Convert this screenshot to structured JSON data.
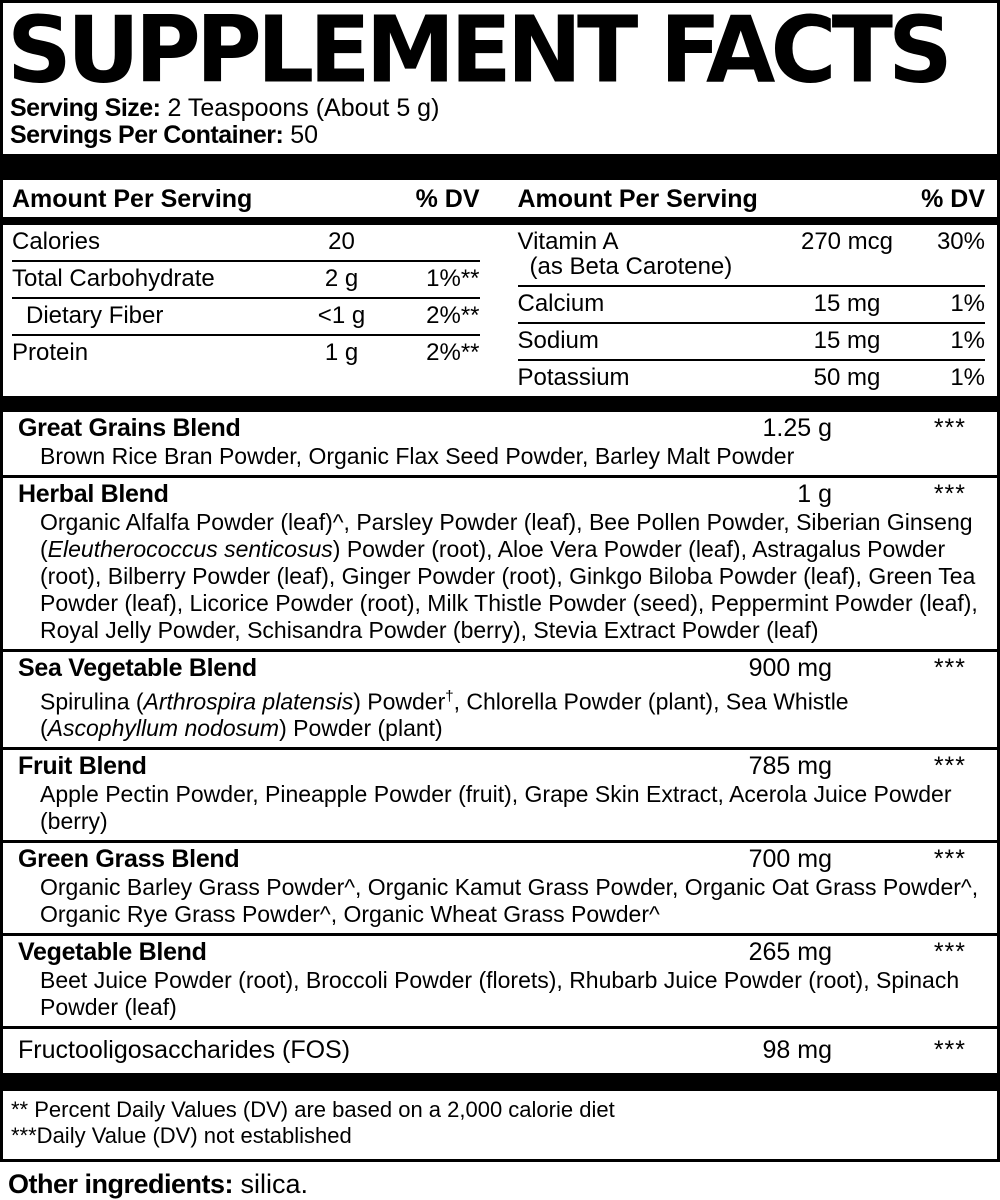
{
  "label": {
    "title": "SUPPLEMENT FACTS",
    "serving_size_label": "Serving Size:",
    "serving_size_value": "2 Teaspoons (About 5 g)",
    "servings_per_container_label": "Servings Per Container:",
    "servings_per_container_value": "50"
  },
  "facts_table": {
    "left": {
      "header": {
        "amount": "Amount Per Serving",
        "dv": "% DV"
      },
      "rows": [
        {
          "name": "Calories",
          "value": "20",
          "dv": ""
        },
        {
          "name": "Total Carbohydrate",
          "value": "2 g",
          "dv": "1%**"
        },
        {
          "name": "Dietary Fiber",
          "value": "<1 g",
          "dv": "2%**"
        },
        {
          "name": "Protein",
          "value": "1 g",
          "dv": "2%**"
        }
      ]
    },
    "right": {
      "header": {
        "amount": "Amount Per Serving",
        "dv": "% DV"
      },
      "rows": [
        {
          "name": "Vitamin A",
          "sub": "(as Beta Carotene)",
          "value": "270 mcg",
          "dv": "30%"
        },
        {
          "name": "Calcium",
          "value": "15 mg",
          "dv": "1%"
        },
        {
          "name": "Sodium",
          "value": "15 mg",
          "dv": "1%"
        },
        {
          "name": "Potassium",
          "value": "50 mg",
          "dv": "1%"
        }
      ]
    }
  },
  "blends": [
    {
      "name": "Great Grains Blend",
      "amount": "1.25 g",
      "dv": "***",
      "parts": [
        {
          "text": "Brown Rice Bran Powder, Organic Flax Seed Powder, Barley Malt Powder"
        }
      ]
    },
    {
      "name": "Herbal Blend",
      "amount": "1 g",
      "dv": "***",
      "parts": [
        {
          "text": "Organic Alfalfa Powder (leaf)^, Parsley Powder (leaf), Bee Pollen Powder, Siberian Ginseng ("
        },
        {
          "text": "Eleutherococcus senticosus",
          "style": "italic"
        },
        {
          "text": ") Powder (root), Aloe Vera Powder (leaf), Astragalus Powder (root), Bilberry Powder (leaf), Ginger Powder (root), Ginkgo Biloba Powder (leaf), Green Tea Powder (leaf), Licorice Powder (root), Milk Thistle Powder (seed), Peppermint Powder (leaf), Royal Jelly Powder, Schisandra Powder (berry), Stevia Extract Powder (leaf)"
        }
      ]
    },
    {
      "name": "Sea Vegetable Blend",
      "amount": "900 mg",
      "dv": "***",
      "parts": [
        {
          "text": "Spirulina ("
        },
        {
          "text": "Arthrospira platensis",
          "style": "italic"
        },
        {
          "text": ") Powder"
        },
        {
          "text": "†",
          "style": "sup"
        },
        {
          "text": ", Chlorella Powder (plant), Sea Whistle ("
        },
        {
          "text": "Ascophyllum nodosum",
          "style": "italic"
        },
        {
          "text": ") Powder (plant)"
        }
      ]
    },
    {
      "name": "Fruit Blend",
      "amount": "785 mg",
      "dv": "***",
      "parts": [
        {
          "text": "Apple Pectin Powder, Pineapple Powder (fruit), Grape Skin Extract, Acerola Juice Powder (berry)"
        }
      ]
    },
    {
      "name": "Green Grass Blend",
      "amount": "700 mg",
      "dv": "***",
      "parts": [
        {
          "text": "Organic Barley Grass Powder^, Organic Kamut Grass Powder, Organic Oat Grass Powder^, Organic Rye Grass Powder^, Organic Wheat Grass Powder^"
        }
      ]
    },
    {
      "name": "Vegetable Blend",
      "amount": "265 mg",
      "dv": "***",
      "parts": [
        {
          "text": "Beet Juice Powder (root), Broccoli Powder (florets), Rhubarb Juice Powder (root), Spinach Powder (leaf)"
        }
      ]
    }
  ],
  "fos_row": {
    "name": "Fructooligosaccharides (FOS)",
    "amount": "98 mg",
    "dv": "***"
  },
  "footnotes": {
    "line1": "** Percent Daily Values (DV) are based on a 2,000 calorie diet",
    "line2": "***Daily Value (DV) not established"
  },
  "other_ingredients": {
    "label": "Other ingredients:",
    "value": "silica."
  },
  "colors": {
    "ink": "#000000",
    "paper": "#ffffff"
  }
}
